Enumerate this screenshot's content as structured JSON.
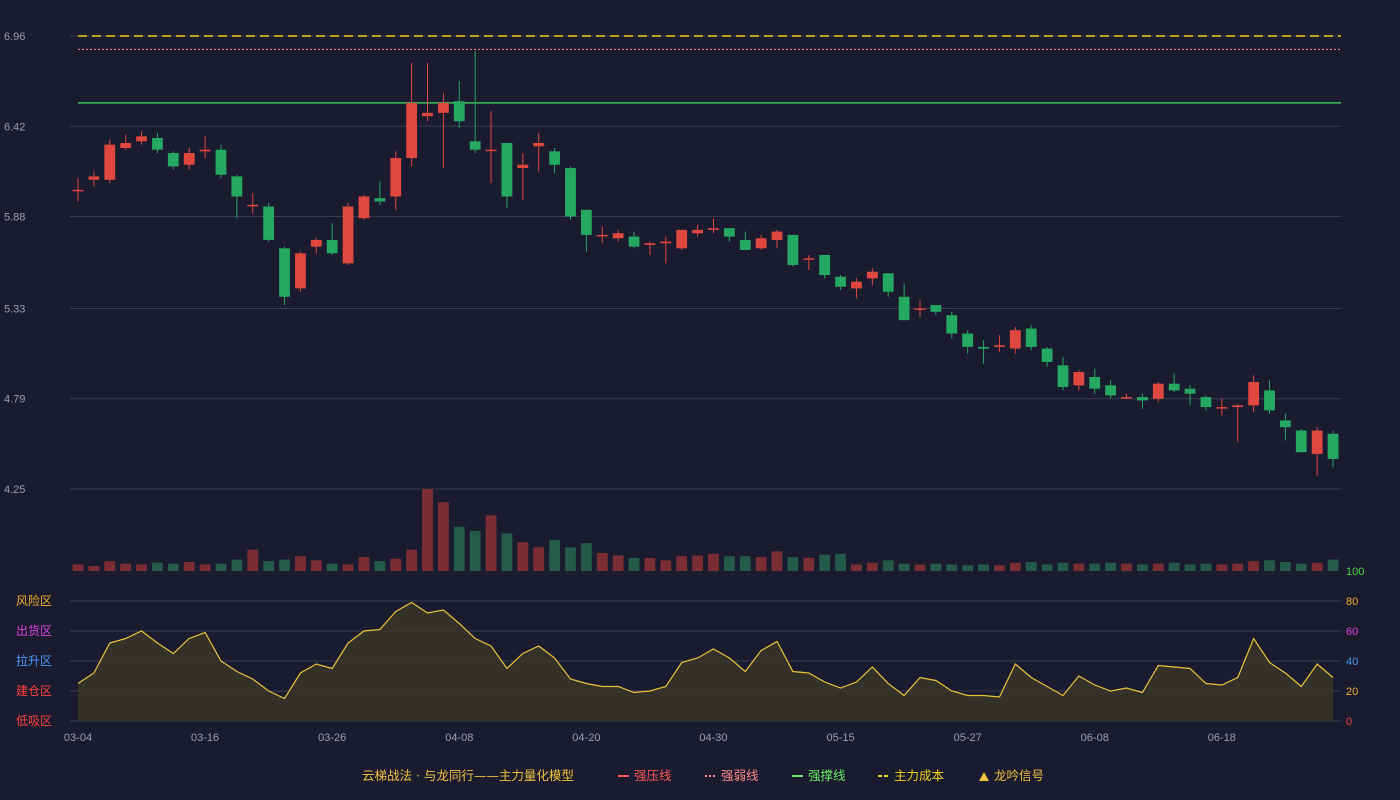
{
  "colors": {
    "background": "#1a1b2e",
    "grid": "#3a3c50",
    "axis_text": "#9aa0b0",
    "up": "#e0473e",
    "down": "#24a862",
    "vol_up": "#7a2e33",
    "vol_down": "#245a48",
    "pressure": "#ff5555",
    "weak": "#ff8a8a",
    "support": "#3fbf5f",
    "cost": "#f0d020",
    "osc_line": "#e8c43a",
    "osc_fill": "#3a3528"
  },
  "legend": {
    "title": "云梯战法 · 与龙同行——主力量化模型",
    "items": [
      {
        "label": "强压线",
        "color": "#ff5555",
        "style": "solid"
      },
      {
        "label": "强弱线",
        "color": "#ff8a8a",
        "style": "dotted"
      },
      {
        "label": "强撑线",
        "color": "#66ee66",
        "style": "solid"
      },
      {
        "label": "主力成本",
        "color": "#f0d020",
        "style": "dashed"
      },
      {
        "label": "龙吟信号",
        "color": "#f0c040",
        "style": "triangle"
      }
    ]
  },
  "chart_data": [
    {
      "type": "candlestick",
      "y_ticks": [
        "6.96",
        "6.42",
        "5.88",
        "5.33",
        "4.79",
        "4.25"
      ],
      "ylim": [
        4.25,
        6.96
      ],
      "x_ticks": [
        "03-04",
        "03-16",
        "03-26",
        "04-08",
        "04-20",
        "04-30",
        "05-15",
        "05-27",
        "06-08",
        "06-18"
      ],
      "x_tick_index": [
        0,
        8,
        16,
        24,
        32,
        40,
        48,
        56,
        64,
        72
      ],
      "reference_lines": {
        "cost": 6.96,
        "weak": 6.88,
        "support": 6.56
      },
      "candles": [
        [
          6.04,
          6.04,
          6.11,
          5.97
        ],
        [
          6.1,
          6.12,
          6.15,
          6.06
        ],
        [
          6.1,
          6.31,
          6.34,
          6.08
        ],
        [
          6.29,
          6.32,
          6.37,
          6.28
        ],
        [
          6.33,
          6.36,
          6.39,
          6.31
        ],
        [
          6.35,
          6.28,
          6.38,
          6.26
        ],
        [
          6.26,
          6.18,
          6.27,
          6.16
        ],
        [
          6.19,
          6.26,
          6.29,
          6.16
        ],
        [
          6.27,
          6.28,
          6.36,
          6.23
        ],
        [
          6.28,
          6.13,
          6.31,
          6.11
        ],
        [
          6.12,
          6.0,
          6.13,
          5.87
        ],
        [
          5.95,
          5.95,
          6.02,
          5.9
        ],
        [
          5.94,
          5.74,
          5.96,
          5.73
        ],
        [
          5.69,
          5.4,
          5.7,
          5.35
        ],
        [
          5.45,
          5.66,
          5.67,
          5.43
        ],
        [
          5.7,
          5.74,
          5.75,
          5.66
        ],
        [
          5.74,
          5.66,
          5.84,
          5.65
        ],
        [
          5.6,
          5.94,
          5.96,
          5.59
        ],
        [
          5.87,
          6.0,
          6.01,
          5.86
        ],
        [
          5.99,
          5.97,
          6.09,
          5.95
        ],
        [
          6.0,
          6.23,
          6.27,
          5.92
        ],
        [
          6.23,
          6.56,
          6.8,
          6.18
        ],
        [
          6.48,
          6.5,
          6.8,
          6.45
        ],
        [
          6.5,
          6.56,
          6.62,
          6.17
        ],
        [
          6.57,
          6.45,
          6.69,
          6.41
        ],
        [
          6.33,
          6.28,
          6.87,
          6.26
        ],
        [
          6.28,
          6.28,
          6.51,
          6.08
        ],
        [
          6.32,
          6.0,
          6.32,
          5.93
        ],
        [
          6.17,
          6.19,
          6.26,
          5.98
        ],
        [
          6.3,
          6.32,
          6.38,
          6.15
        ],
        [
          6.27,
          6.19,
          6.29,
          6.14
        ],
        [
          6.17,
          5.88,
          6.18,
          5.86
        ],
        [
          5.92,
          5.77,
          5.92,
          5.67
        ],
        [
          5.77,
          5.77,
          5.82,
          5.72
        ],
        [
          5.75,
          5.78,
          5.8,
          5.73
        ],
        [
          5.76,
          5.7,
          5.79,
          5.69
        ],
        [
          5.71,
          5.72,
          5.73,
          5.65
        ],
        [
          5.72,
          5.73,
          5.76,
          5.6
        ],
        [
          5.69,
          5.8,
          5.8,
          5.68
        ],
        [
          5.78,
          5.8,
          5.83,
          5.76
        ],
        [
          5.8,
          5.81,
          5.87,
          5.78
        ],
        [
          5.81,
          5.76,
          5.81,
          5.73
        ],
        [
          5.74,
          5.68,
          5.79,
          5.68
        ],
        [
          5.69,
          5.75,
          5.77,
          5.68
        ],
        [
          5.74,
          5.79,
          5.8,
          5.69
        ],
        [
          5.77,
          5.59,
          5.77,
          5.58
        ],
        [
          5.63,
          5.63,
          5.65,
          5.56
        ],
        [
          5.65,
          5.53,
          5.65,
          5.51
        ],
        [
          5.52,
          5.46,
          5.53,
          5.44
        ],
        [
          5.45,
          5.49,
          5.51,
          5.39
        ],
        [
          5.51,
          5.55,
          5.57,
          5.47
        ],
        [
          5.54,
          5.43,
          5.54,
          5.4
        ],
        [
          5.4,
          5.26,
          5.48,
          5.26
        ],
        [
          5.33,
          5.33,
          5.38,
          5.28
        ],
        [
          5.35,
          5.31,
          5.35,
          5.29
        ],
        [
          5.29,
          5.18,
          5.31,
          5.15
        ],
        [
          5.18,
          5.1,
          5.2,
          5.06
        ],
        [
          5.1,
          5.09,
          5.14,
          5.0
        ],
        [
          5.1,
          5.11,
          5.17,
          5.07
        ],
        [
          5.09,
          5.2,
          5.22,
          5.06
        ],
        [
          5.21,
          5.1,
          5.23,
          5.08
        ],
        [
          5.09,
          5.01,
          5.1,
          4.98
        ],
        [
          4.99,
          4.86,
          5.04,
          4.84
        ],
        [
          4.87,
          4.95,
          4.96,
          4.84
        ],
        [
          4.92,
          4.85,
          4.97,
          4.82
        ],
        [
          4.87,
          4.81,
          4.9,
          4.79
        ],
        [
          4.8,
          4.8,
          4.82,
          4.79
        ],
        [
          4.8,
          4.78,
          4.82,
          4.73
        ],
        [
          4.79,
          4.88,
          4.89,
          4.77
        ],
        [
          4.88,
          4.84,
          4.94,
          4.83
        ],
        [
          4.85,
          4.82,
          4.87,
          4.75
        ],
        [
          4.8,
          4.74,
          4.81,
          4.72
        ],
        [
          4.74,
          4.74,
          4.79,
          4.69
        ],
        [
          4.74,
          4.75,
          4.76,
          4.53
        ],
        [
          4.75,
          4.89,
          4.93,
          4.71
        ],
        [
          4.84,
          4.72,
          4.9,
          4.7
        ],
        [
          4.66,
          4.62,
          4.7,
          4.54
        ],
        [
          4.6,
          4.47,
          4.61,
          4.47
        ],
        [
          4.46,
          4.6,
          4.62,
          4.33
        ],
        [
          4.58,
          4.43,
          4.6,
          4.38
        ]
      ]
    },
    {
      "type": "bar",
      "name": "volume",
      "values": [
        8,
        6,
        12,
        9,
        8,
        10,
        9,
        11,
        8,
        9,
        14,
        26,
        12,
        14,
        18,
        13,
        9,
        8,
        17,
        12,
        15,
        26,
        100,
        84,
        54,
        49,
        68,
        46,
        35,
        29,
        38,
        29,
        34,
        22,
        19,
        16,
        16,
        13,
        18,
        19,
        21,
        18,
        18,
        17,
        24,
        17,
        16,
        20,
        21,
        8,
        10,
        13,
        9,
        8,
        9,
        8,
        7,
        8,
        7,
        10,
        11,
        8,
        10,
        9,
        9,
        10,
        9,
        8,
        9,
        10,
        8,
        9,
        8,
        9,
        12,
        13,
        11,
        9,
        10,
        14
      ],
      "colors": "up-red / down-green"
    },
    {
      "type": "line",
      "name": "oscillator",
      "ylim": [
        0,
        100
      ],
      "y_ticks": [
        "100",
        "80",
        "60",
        "40",
        "20",
        "0"
      ],
      "zones": [
        {
          "label": "风险区",
          "color": "#f0b030"
        },
        {
          "label": "出货区",
          "color": "#e040e0"
        },
        {
          "label": "拉升区",
          "color": "#4a9aff"
        },
        {
          "label": "建仓区",
          "color": "#ff4040"
        },
        {
          "label": "低吸区",
          "color": "#ff4040"
        }
      ],
      "values": [
        25,
        32,
        52,
        55,
        60,
        52,
        45,
        55,
        59,
        40,
        33,
        28,
        20,
        15,
        32,
        38,
        35,
        52,
        60,
        61,
        73,
        79,
        72,
        74,
        65,
        55,
        50,
        35,
        45,
        50,
        42,
        28,
        25,
        23,
        23,
        19,
        20,
        23,
        39,
        42,
        48,
        42,
        33,
        47,
        53,
        33,
        32,
        26,
        22,
        26,
        36,
        25,
        17,
        29,
        27,
        20,
        17,
        17,
        16,
        38,
        29,
        23,
        17,
        30,
        24,
        20,
        22,
        19,
        37,
        36,
        35,
        25,
        24,
        29,
        55,
        39,
        32,
        23,
        38,
        29
      ]
    }
  ]
}
